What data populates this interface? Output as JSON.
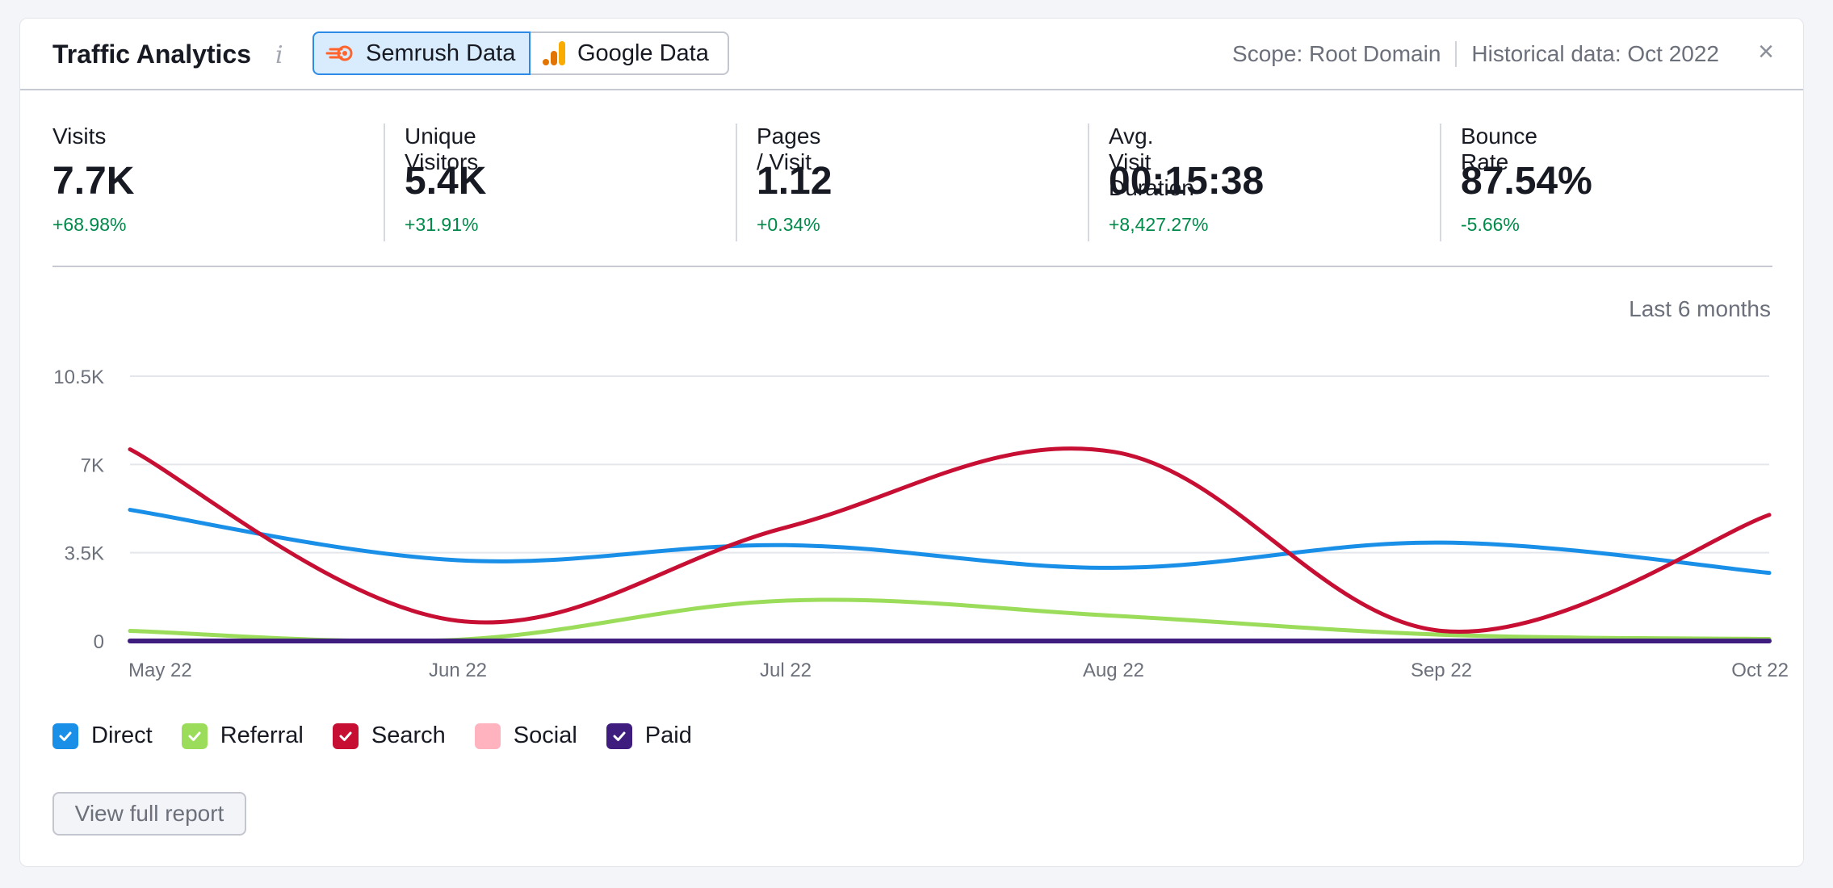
{
  "widget": {
    "title": "Traffic Analytics",
    "info_icon": "i",
    "sources": [
      {
        "label": "Semrush Data",
        "icon": "semrush-logo",
        "selected": true
      },
      {
        "label": "Google Data",
        "icon": "google-analytics-logo",
        "selected": false
      }
    ],
    "scope": "Scope: Root Domain",
    "historical": "Historical data: Oct 2022",
    "close_icon": "×"
  },
  "metrics": [
    {
      "label": "Visits",
      "value": "7.7K",
      "change": "+68.98%"
    },
    {
      "label": "Unique Visitors",
      "value": "5.4K",
      "change": "+31.91%"
    },
    {
      "label": "Pages / Visit",
      "value": "1.12",
      "change": "+0.34%"
    },
    {
      "label": "Avg. Visit Duration",
      "value": "00:15:38",
      "change": "+8,427.27%"
    },
    {
      "label": "Bounce Rate",
      "value": "87.54%",
      "change": "-5.66%"
    }
  ],
  "period": "Last 6 months",
  "colors": {
    "direct": "#1a8fe8",
    "referral": "#9bdd5a",
    "search": "#c70f34",
    "social": "#ffb3bf",
    "paid": "#3e1d7e",
    "positive_change": "#008a4a"
  },
  "chart_data": {
    "type": "line",
    "x": [
      "May 22",
      "Jun 22",
      "Jul 22",
      "Aug 22",
      "Sep 22",
      "Oct 22"
    ],
    "ylim": [
      0,
      10500
    ],
    "yticks": [
      0,
      3500,
      7000,
      10500
    ],
    "ytick_labels": [
      "0",
      "3.5K",
      "7K",
      "10.5K"
    ],
    "grid": true,
    "series": [
      {
        "name": "Direct",
        "key": "direct",
        "values": [
          5200,
          3200,
          3800,
          2900,
          3900,
          2700
        ]
      },
      {
        "name": "Referral",
        "key": "referral",
        "values": [
          400,
          50,
          1600,
          1000,
          250,
          80
        ]
      },
      {
        "name": "Search",
        "key": "search",
        "values": [
          7600,
          800,
          4500,
          7500,
          400,
          5000
        ]
      },
      {
        "name": "Social",
        "key": "social",
        "values": [
          0,
          0,
          0,
          0,
          0,
          0
        ]
      },
      {
        "name": "Paid",
        "key": "paid",
        "values": [
          0,
          0,
          0,
          0,
          0,
          0
        ]
      }
    ]
  },
  "legend": [
    {
      "label": "Direct",
      "key": "direct",
      "checked": true
    },
    {
      "label": "Referral",
      "key": "referral",
      "checked": true
    },
    {
      "label": "Search",
      "key": "search",
      "checked": true
    },
    {
      "label": "Social",
      "key": "social",
      "checked": false
    },
    {
      "label": "Paid",
      "key": "paid",
      "checked": true
    }
  ],
  "actions": {
    "full_report_label": "View full report"
  }
}
